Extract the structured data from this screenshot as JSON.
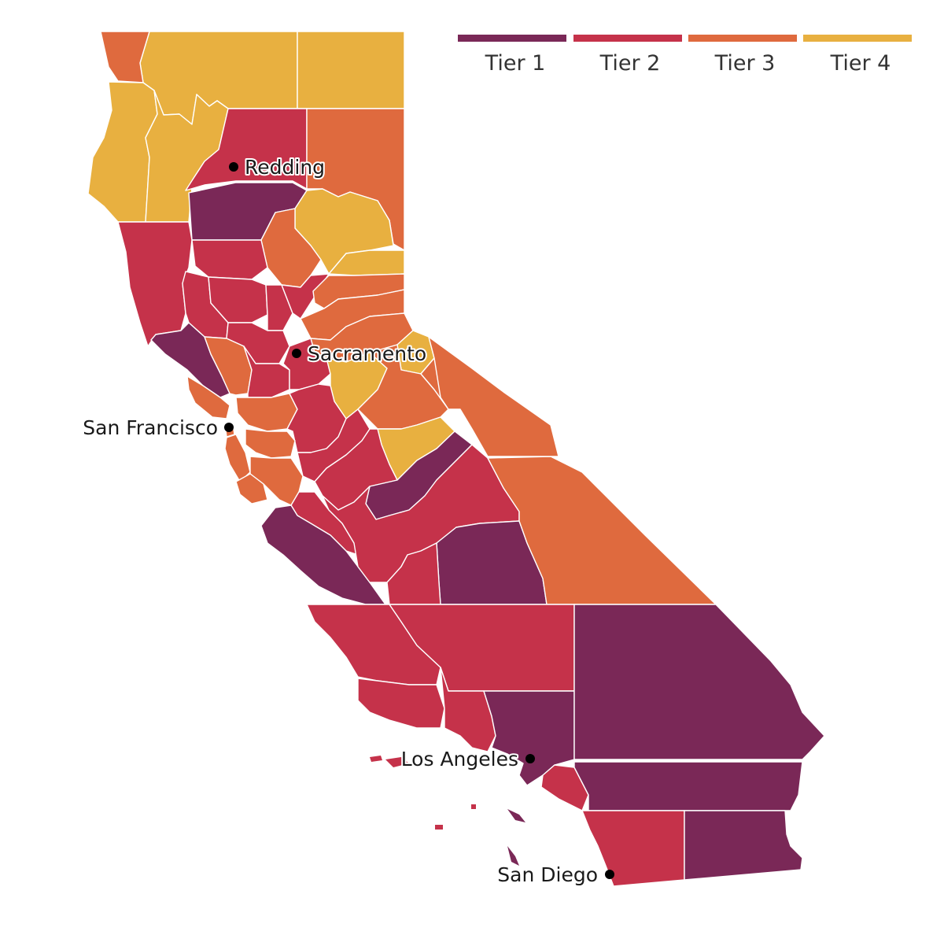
{
  "legend": {
    "tiers": [
      {
        "label": "Tier 1",
        "color": "#7a2857"
      },
      {
        "label": "Tier 2",
        "color": "#c5324a"
      },
      {
        "label": "Tier 3",
        "color": "#df6a3e"
      },
      {
        "label": "Tier 4",
        "color": "#e8b040"
      }
    ]
  },
  "cities": [
    {
      "name": "Redding"
    },
    {
      "name": "Sacramento"
    },
    {
      "name": "San Francisco"
    },
    {
      "name": "Los Angeles"
    },
    {
      "name": "San Diego"
    }
  ],
  "colors": {
    "tier1": "#7a2857",
    "tier2": "#c5324a",
    "tier3": "#df6a3e",
    "tier4": "#e8b040",
    "county_border": "#ffffff",
    "city_marker": "#000000"
  }
}
